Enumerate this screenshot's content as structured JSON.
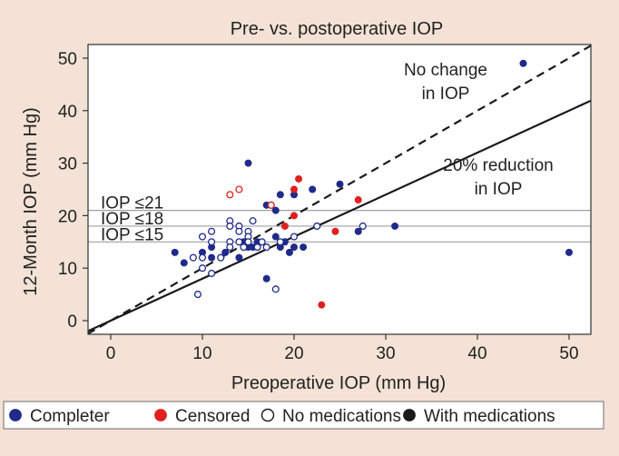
{
  "chart_data": {
    "type": "scatter",
    "title": "Pre- vs. postoperative IOP",
    "xlabel": "Preoperative IOP (mm Hg)",
    "ylabel": "12-Month IOP (mm Hg)",
    "xlim": [
      -2.5,
      53
    ],
    "ylim": [
      -2.5,
      53
    ],
    "xticks": [
      0,
      10,
      20,
      30,
      40,
      50
    ],
    "yticks": [
      0,
      10,
      20,
      30,
      40,
      50
    ],
    "reference_lines": [
      {
        "label": "IOP ≤21",
        "y": 21
      },
      {
        "label": "IOP ≤18",
        "y": 18
      },
      {
        "label": "IOP ≤15",
        "y": 15
      }
    ],
    "diagonals": [
      {
        "name": "no-change",
        "label_line1": "No change",
        "label_line2": "in IOP",
        "slope": 1.0,
        "style": "dashed"
      },
      {
        "name": "20pct-reduction",
        "label_line1": "20% reduction",
        "label_line2": "in IOP",
        "slope": 0.8,
        "style": "solid"
      }
    ],
    "series": [
      {
        "name": "Completer with medications",
        "color": "#1f2a8a",
        "filled": true,
        "points": [
          [
            7,
            13
          ],
          [
            8,
            11
          ],
          [
            10,
            13
          ],
          [
            11,
            12
          ],
          [
            11,
            14
          ],
          [
            12,
            12
          ],
          [
            12.5,
            13
          ],
          [
            14,
            12
          ],
          [
            14.5,
            15
          ],
          [
            15,
            14
          ],
          [
            15,
            30
          ],
          [
            15.5,
            14
          ],
          [
            16,
            14
          ],
          [
            16,
            15
          ],
          [
            17,
            22
          ],
          [
            17,
            8
          ],
          [
            18,
            16
          ],
          [
            18,
            21
          ],
          [
            18.5,
            24
          ],
          [
            18.5,
            14
          ],
          [
            19,
            15
          ],
          [
            19.5,
            13
          ],
          [
            20,
            24
          ],
          [
            20,
            14
          ],
          [
            21,
            14
          ],
          [
            22,
            25
          ],
          [
            25,
            26
          ],
          [
            27,
            17
          ],
          [
            31,
            18
          ],
          [
            45,
            49
          ],
          [
            50,
            13
          ]
        ]
      },
      {
        "name": "Censored with medications",
        "color": "#e02020",
        "filled": true,
        "points": [
          [
            19,
            18
          ],
          [
            20,
            20
          ],
          [
            20,
            25
          ],
          [
            20.5,
            27
          ],
          [
            23,
            3
          ],
          [
            24.5,
            17
          ],
          [
            27,
            23
          ]
        ]
      },
      {
        "name": "Completer no medications",
        "color": "#1f2a8a",
        "filled": false,
        "points": [
          [
            9,
            12
          ],
          [
            9.5,
            5
          ],
          [
            10,
            10
          ],
          [
            10,
            16
          ],
          [
            10,
            12
          ],
          [
            11,
            9
          ],
          [
            11,
            15
          ],
          [
            11,
            17
          ],
          [
            12,
            12
          ],
          [
            13,
            19
          ],
          [
            13,
            18
          ],
          [
            13,
            15
          ],
          [
            13,
            14
          ],
          [
            14,
            18
          ],
          [
            14,
            15
          ],
          [
            14,
            17
          ],
          [
            14.5,
            14
          ],
          [
            15,
            17
          ],
          [
            15,
            16
          ],
          [
            15,
            15
          ],
          [
            15.5,
            19
          ],
          [
            16,
            14
          ],
          [
            16.5,
            15
          ],
          [
            17,
            14
          ],
          [
            17.5,
            22
          ],
          [
            18,
            6
          ],
          [
            18.5,
            15
          ],
          [
            20,
            16
          ],
          [
            22.5,
            18
          ],
          [
            27.5,
            18
          ]
        ]
      },
      {
        "name": "Censored no medications",
        "color": "#e02020",
        "filled": false,
        "points": [
          [
            13,
            24
          ],
          [
            14,
            25
          ],
          [
            17.5,
            22
          ]
        ]
      }
    ],
    "legend": {
      "placement": "bottom",
      "entries": [
        {
          "label": "Completer",
          "color": "#1f2a8a",
          "filled": true
        },
        {
          "label": "Censored",
          "color": "#e02020",
          "filled": true
        },
        {
          "label": "No medications",
          "color": "#1a1a1a",
          "filled": false
        },
        {
          "label": "With medications",
          "color": "#1a1a1a",
          "filled": true
        }
      ]
    }
  }
}
